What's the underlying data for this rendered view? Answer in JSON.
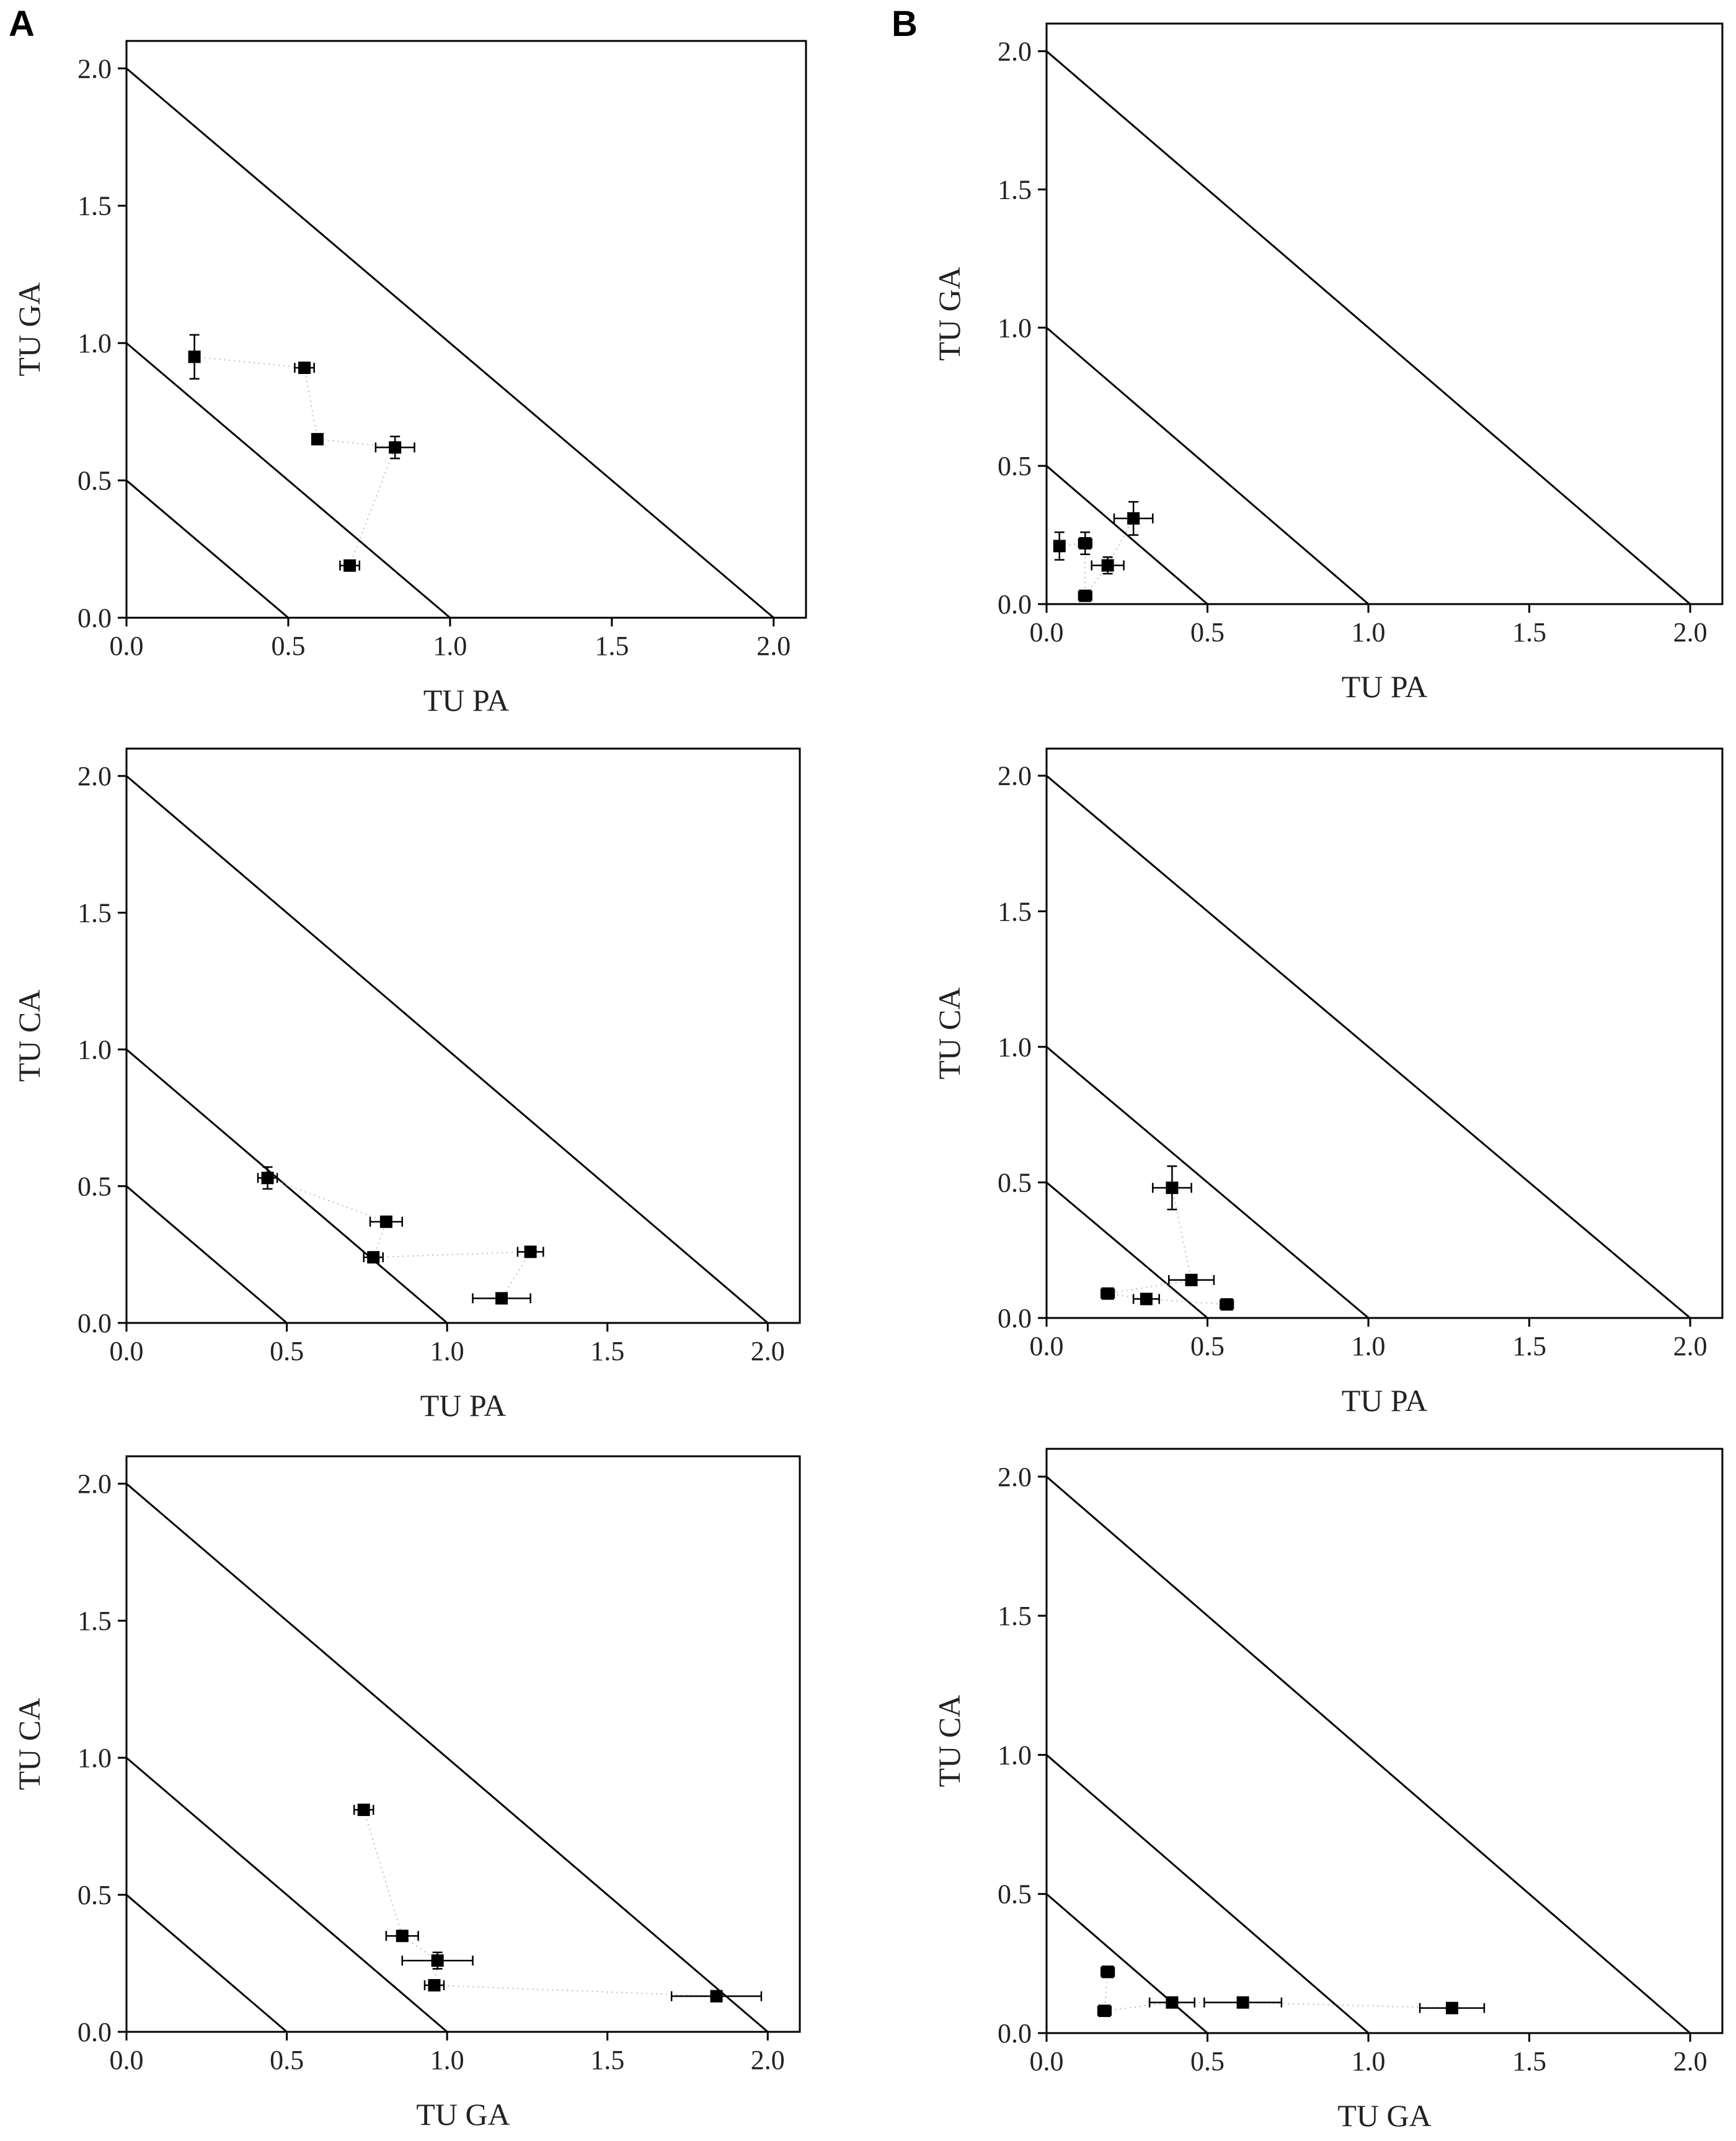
{
  "figure": {
    "panel_labels": [
      "A",
      "B"
    ]
  },
  "chart_data": [
    {
      "type": "scatter",
      "title": "",
      "xlabel": "TU PA",
      "ylabel": "TU GA",
      "xlim": [
        0,
        2.1
      ],
      "ylim": [
        0,
        2.1
      ],
      "xticks": [
        "0.0",
        "0.5",
        "1.0",
        "1.5",
        "2.0"
      ],
      "yticks": [
        "0.0",
        "0.5",
        "1.0",
        "1.5",
        "2.0"
      ],
      "isobole_lines": [
        0.5,
        1.0,
        2.0
      ],
      "points": [
        {
          "x": 0.21,
          "y": 0.95,
          "xerr": 0.0,
          "yerr": 0.08
        },
        {
          "x": 0.55,
          "y": 0.91,
          "xerr": 0.03,
          "yerr": 0.0
        },
        {
          "x": 0.59,
          "y": 0.65,
          "xerr": 0.0,
          "yerr": 0.0
        },
        {
          "x": 0.83,
          "y": 0.62,
          "xerr": 0.06,
          "yerr": 0.04
        },
        {
          "x": 0.69,
          "y": 0.19,
          "xerr": 0.03,
          "yerr": 0.0
        }
      ]
    },
    {
      "type": "scatter",
      "title": "",
      "xlabel": "TU PA",
      "ylabel": "TU CA",
      "xlim": [
        0,
        2.1
      ],
      "ylim": [
        0,
        2.1
      ],
      "xticks": [
        "0.0",
        "0.5",
        "1.0",
        "1.5",
        "2.0"
      ],
      "yticks": [
        "0.0",
        "0.5",
        "1.0",
        "1.5",
        "2.0"
      ],
      "isobole_lines": [
        0.5,
        1.0,
        2.0
      ],
      "points": [
        {
          "x": 0.44,
          "y": 0.53,
          "xerr": 0.03,
          "yerr": 0.04
        },
        {
          "x": 0.81,
          "y": 0.37,
          "xerr": 0.05,
          "yerr": 0.0
        },
        {
          "x": 0.77,
          "y": 0.24,
          "xerr": 0.03,
          "yerr": 0.0
        },
        {
          "x": 1.26,
          "y": 0.26,
          "xerr": 0.04,
          "yerr": 0.0
        },
        {
          "x": 1.17,
          "y": 0.09,
          "xerr": 0.09,
          "yerr": 0.0
        }
      ]
    },
    {
      "type": "scatter",
      "title": "",
      "xlabel": "TU GA",
      "ylabel": "TU CA",
      "xlim": [
        0,
        2.1
      ],
      "ylim": [
        0,
        2.1
      ],
      "xticks": [
        "0.0",
        "0.5",
        "1.0",
        "1.5",
        "2.0"
      ],
      "yticks": [
        "0.0",
        "0.5",
        "1.0",
        "1.5",
        "2.0"
      ],
      "isobole_lines": [
        0.5,
        1.0,
        2.0
      ],
      "points": [
        {
          "x": 0.74,
          "y": 0.81,
          "xerr": 0.03,
          "yerr": 0.0
        },
        {
          "x": 0.86,
          "y": 0.35,
          "xerr": 0.05,
          "yerr": 0.0
        },
        {
          "x": 0.97,
          "y": 0.26,
          "xerr": 0.11,
          "yerr": 0.03
        },
        {
          "x": 0.96,
          "y": 0.17,
          "xerr": 0.03,
          "yerr": 0.0
        },
        {
          "x": 1.84,
          "y": 0.13,
          "xerr": 0.14,
          "yerr": 0.0
        }
      ]
    },
    {
      "type": "scatter",
      "title": "",
      "xlabel": "TU PA",
      "ylabel": "TU GA",
      "xlim": [
        0,
        2.1
      ],
      "ylim": [
        0,
        2.1
      ],
      "xticks": [
        "0.0",
        "0.5",
        "1.0",
        "1.5",
        "2.0"
      ],
      "yticks": [
        "0.0",
        "0.5",
        "1.0",
        "1.5",
        "2.0"
      ],
      "isobole_lines": [
        0.5,
        1.0,
        2.0
      ],
      "points": [
        {
          "x": 0.04,
          "y": 0.21,
          "xerr": 0.0,
          "yerr": 0.05
        },
        {
          "x": 0.12,
          "y": 0.22,
          "xerr": 0.02,
          "yerr": 0.04
        },
        {
          "x": 0.12,
          "y": 0.03,
          "xerr": 0.02,
          "yerr": 0.0
        },
        {
          "x": 0.19,
          "y": 0.14,
          "xerr": 0.05,
          "yerr": 0.03
        },
        {
          "x": 0.27,
          "y": 0.31,
          "xerr": 0.06,
          "yerr": 0.06
        }
      ]
    },
    {
      "type": "scatter",
      "title": "",
      "xlabel": "TU PA",
      "ylabel": "TU CA",
      "xlim": [
        0,
        2.1
      ],
      "ylim": [
        0,
        2.1
      ],
      "xticks": [
        "0.0",
        "0.5",
        "1.0",
        "1.5",
        "2.0"
      ],
      "yticks": [
        "0.0",
        "0.5",
        "1.0",
        "1.5",
        "2.0"
      ],
      "isobole_lines": [
        0.5,
        1.0,
        2.0
      ],
      "points": [
        {
          "x": 0.39,
          "y": 0.48,
          "xerr": 0.06,
          "yerr": 0.08
        },
        {
          "x": 0.45,
          "y": 0.14,
          "xerr": 0.07,
          "yerr": 0.0
        },
        {
          "x": 0.19,
          "y": 0.09,
          "xerr": 0.02,
          "yerr": 0.0
        },
        {
          "x": 0.31,
          "y": 0.07,
          "xerr": 0.04,
          "yerr": 0.0
        },
        {
          "x": 0.56,
          "y": 0.05,
          "xerr": 0.02,
          "yerr": 0.0
        }
      ]
    },
    {
      "type": "scatter",
      "title": "",
      "xlabel": "TU GA",
      "ylabel": "TU CA",
      "xlim": [
        0,
        2.1
      ],
      "ylim": [
        0,
        2.1
      ],
      "xticks": [
        "0.0",
        "0.5",
        "1.0",
        "1.5",
        "2.0"
      ],
      "yticks": [
        "0.0",
        "0.5",
        "1.0",
        "1.5",
        "2.0"
      ],
      "isobole_lines": [
        0.5,
        1.0,
        2.0
      ],
      "points": [
        {
          "x": 0.19,
          "y": 0.22,
          "xerr": 0.02,
          "yerr": 0.02
        },
        {
          "x": 0.18,
          "y": 0.08,
          "xerr": 0.02,
          "yerr": 0.0
        },
        {
          "x": 0.39,
          "y": 0.11,
          "xerr": 0.07,
          "yerr": 0.0
        },
        {
          "x": 0.61,
          "y": 0.11,
          "xerr": 0.12,
          "yerr": 0.0
        },
        {
          "x": 1.26,
          "y": 0.09,
          "xerr": 0.1,
          "yerr": 0.0
        }
      ]
    }
  ]
}
